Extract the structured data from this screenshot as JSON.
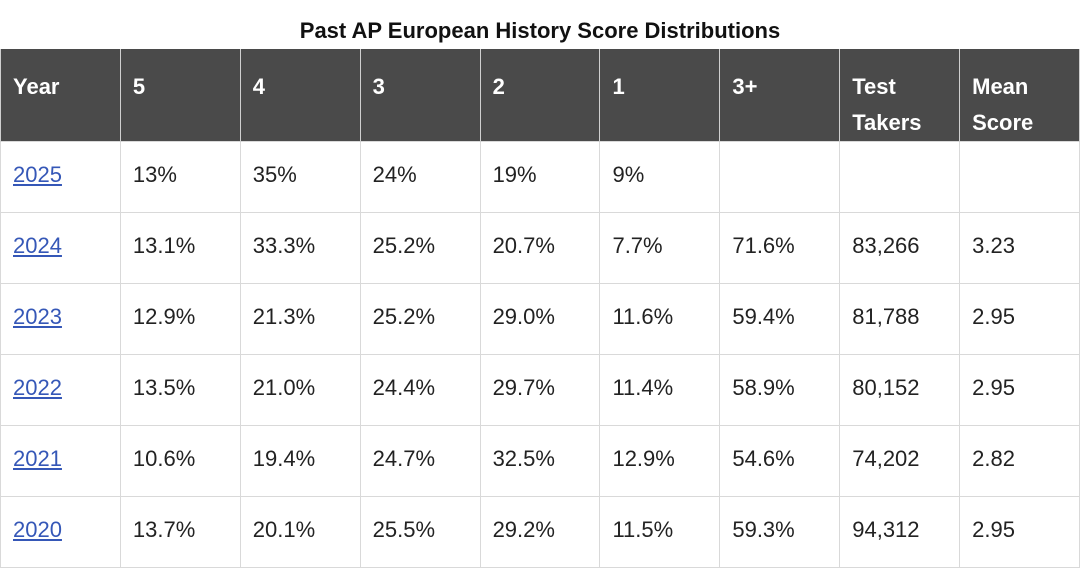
{
  "title": "Past AP European History Score Distributions",
  "table": {
    "headers": [
      "Year",
      "5",
      "4",
      "3",
      "2",
      "1",
      "3+",
      "Test Takers",
      "Mean Score"
    ],
    "rows": [
      [
        "2025",
        "13%",
        "35%",
        "24%",
        "19%",
        "9%",
        "",
        "",
        ""
      ],
      [
        "2024",
        "13.1%",
        "33.3%",
        "25.2%",
        "20.7%",
        "7.7%",
        "71.6%",
        "83,266",
        "3.23"
      ],
      [
        "2023",
        "12.9%",
        "21.3%",
        "25.2%",
        "29.0%",
        "11.6%",
        "59.4%",
        "81,788",
        "2.95"
      ],
      [
        "2022",
        "13.5%",
        "21.0%",
        "24.4%",
        "29.7%",
        "11.4%",
        "58.9%",
        "80,152",
        "2.95"
      ],
      [
        "2021",
        "10.6%",
        "19.4%",
        "24.7%",
        "32.5%",
        "12.9%",
        "54.6%",
        "74,202",
        "2.82"
      ],
      [
        "2020",
        "13.7%",
        "20.1%",
        "25.5%",
        "29.2%",
        "11.5%",
        "59.3%",
        "94,312",
        "2.95"
      ]
    ]
  },
  "colors": {
    "header_bg": "#4a4a4a",
    "header_text": "#ffffff",
    "link": "#3557b7",
    "border": "#d9d9d9"
  }
}
